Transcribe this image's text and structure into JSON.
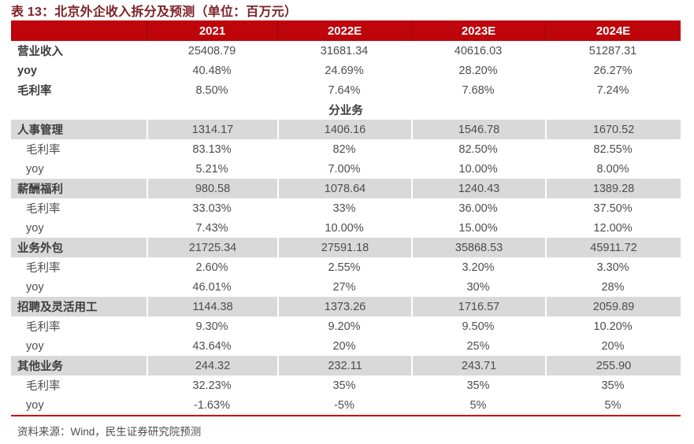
{
  "title": "表 13：北京外企收入拆分及预测（单位：百万元）",
  "source": "资料来源：Wind，民生证券研究院预测",
  "colors": {
    "header_bg": "#BE050C",
    "header_separator": "#9A040A",
    "group_row_bg": "#D9D9D9",
    "title_color": "#7E2228",
    "bottom_rule": "#C9060E",
    "body_text": "#4D4D4D"
  },
  "chart_data": {
    "type": "table",
    "title": "表 13：北京外企收入拆分及预测（单位：百万元）",
    "columns": [
      "",
      "2021",
      "2022E",
      "2023E",
      "2024E"
    ],
    "section_divider": "分业务",
    "rows": [
      {
        "label": "营业收入",
        "style": "top",
        "values": [
          "25408.79",
          "31681.34",
          "40616.03",
          "51287.31"
        ]
      },
      {
        "label": "yoy",
        "style": "top",
        "values": [
          "40.48%",
          "24.69%",
          "28.20%",
          "26.27%"
        ]
      },
      {
        "label": "毛利率",
        "style": "top",
        "values": [
          "8.50%",
          "7.64%",
          "7.68%",
          "7.24%"
        ]
      },
      {
        "label": "分业务",
        "style": "divider",
        "values": []
      },
      {
        "label": "人事管理",
        "style": "group",
        "values": [
          "1314.17",
          "1406.16",
          "1546.78",
          "1670.52"
        ]
      },
      {
        "label": "毛利率",
        "style": "sub",
        "values": [
          "83.13%",
          "82%",
          "82.50%",
          "82.55%"
        ]
      },
      {
        "label": "yoy",
        "style": "sub",
        "values": [
          "5.21%",
          "7.00%",
          "10.00%",
          "8.00%"
        ]
      },
      {
        "label": "薪酬福利",
        "style": "group",
        "values": [
          "980.58",
          "1078.64",
          "1240.43",
          "1389.28"
        ]
      },
      {
        "label": "毛利率",
        "style": "sub",
        "values": [
          "33.03%",
          "33%",
          "36.00%",
          "37.50%"
        ]
      },
      {
        "label": "yoy",
        "style": "sub",
        "values": [
          "7.43%",
          "10.00%",
          "15.00%",
          "12.00%"
        ]
      },
      {
        "label": "业务外包",
        "style": "group",
        "values": [
          "21725.34",
          "27591.18",
          "35868.53",
          "45911.72"
        ]
      },
      {
        "label": "毛利率",
        "style": "sub",
        "values": [
          "2.60%",
          "2.55%",
          "3.20%",
          "3.30%"
        ]
      },
      {
        "label": "yoy",
        "style": "sub",
        "values": [
          "46.01%",
          "27%",
          "30%",
          "28%"
        ]
      },
      {
        "label": "招聘及灵活用工",
        "style": "group",
        "values": [
          "1144.38",
          "1373.26",
          "1716.57",
          "2059.89"
        ]
      },
      {
        "label": "毛利率",
        "style": "sub",
        "values": [
          "9.30%",
          "9.20%",
          "9.50%",
          "10.20%"
        ]
      },
      {
        "label": "yoy",
        "style": "sub",
        "values": [
          "43.64%",
          "20%",
          "25%",
          "20%"
        ]
      },
      {
        "label": "其他业务",
        "style": "group",
        "values": [
          "244.32",
          "232.11",
          "243.71",
          "255.90"
        ]
      },
      {
        "label": "毛利率",
        "style": "sub",
        "values": [
          "32.23%",
          "35%",
          "35%",
          "35%"
        ]
      },
      {
        "label": "yoy",
        "style": "sub",
        "values": [
          "-1.63%",
          "-5%",
          "5%",
          "5%"
        ]
      }
    ]
  }
}
